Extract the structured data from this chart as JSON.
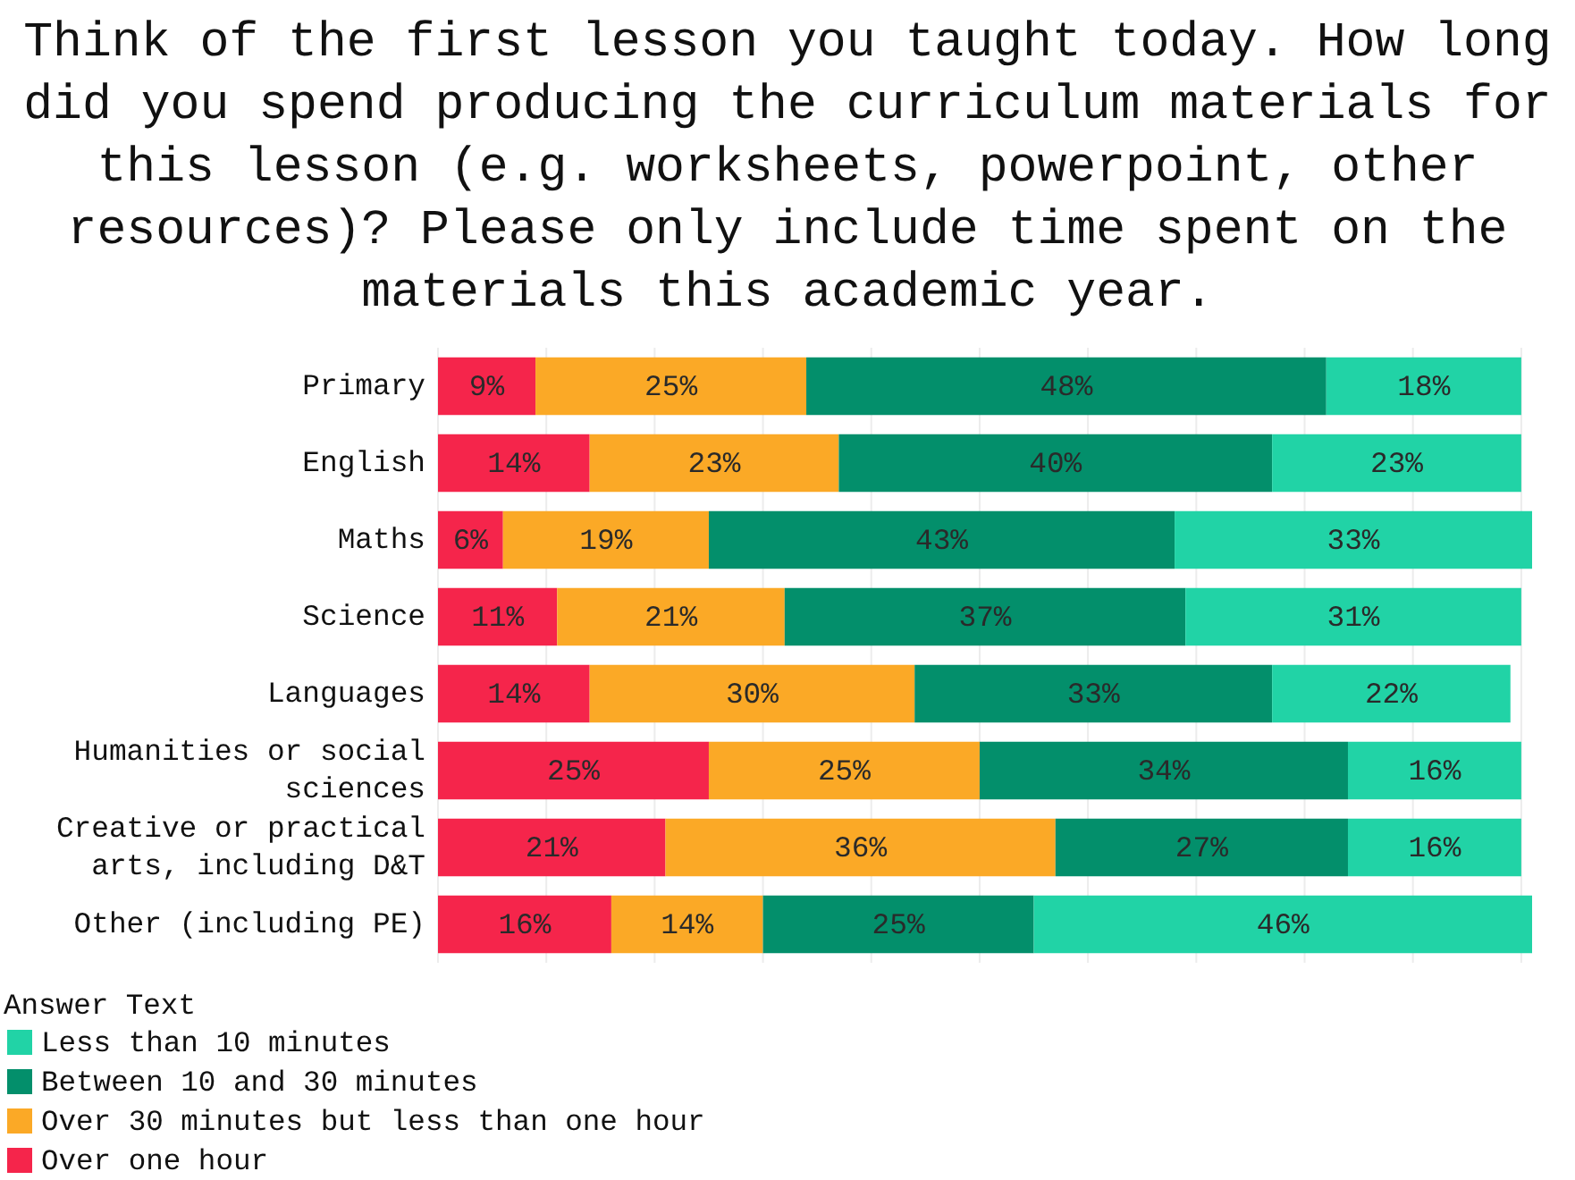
{
  "chart_data": {
    "type": "bar",
    "orientation": "horizontal",
    "stacked": true,
    "title": "Think of the first lesson you taught today. How long did you spend producing the curriculum materials for this lesson (e.g. worksheets, powerpoint, other resources)? Please only include time spent on the materials this academic year.",
    "categories": [
      "Primary",
      "English",
      "Maths",
      "Science",
      "Languages",
      "Humanities or social sciences",
      "Creative or practical arts, including D&T",
      "Other (including PE)"
    ],
    "series": [
      {
        "name": "Over one hour",
        "color": "#f5254b",
        "values": [
          9,
          14,
          6,
          11,
          14,
          25,
          21,
          16
        ],
        "value_labels": [
          "9%",
          "14%",
          "6%",
          "11%",
          "14%",
          "25%",
          "21%",
          "16%"
        ]
      },
      {
        "name": "Over 30 minutes but less than one hour",
        "color": "#fba926",
        "values": [
          25,
          23,
          19,
          21,
          30,
          25,
          36,
          14
        ],
        "value_labels": [
          "25%",
          "23%",
          "19%",
          "21%",
          "30%",
          "25%",
          "36%",
          "14%"
        ]
      },
      {
        "name": "Between 10 and 30 minutes",
        "color": "#038f6b",
        "values": [
          48,
          40,
          43,
          37,
          33,
          34,
          27,
          25
        ],
        "value_labels": [
          "48%",
          "40%",
          "43%",
          "37%",
          "33%",
          "34%",
          "27%",
          "25%"
        ]
      },
      {
        "name": "Less than 10 minutes",
        "color": "#21d3a6",
        "values": [
          18,
          23,
          33,
          31,
          22,
          16,
          16,
          46
        ],
        "value_labels": [
          "18%",
          "23%",
          "33%",
          "31%",
          "22%",
          "16%",
          "16%",
          "46%"
        ]
      }
    ],
    "xlim": [
      0,
      101
    ],
    "xticks": [
      {
        "value": 0,
        "label": null
      },
      {
        "value": 10,
        "label": null
      },
      {
        "value": 20,
        "label": null
      },
      {
        "value": 30,
        "label": null
      },
      {
        "value": 40,
        "label": null
      },
      {
        "value": 50,
        "label": null
      },
      {
        "value": 60,
        "label": null
      },
      {
        "value": 70,
        "label": null
      },
      {
        "value": 80,
        "label": null
      },
      {
        "value": 90,
        "label": null
      },
      {
        "value": 100,
        "label": null
      }
    ],
    "tick_labels": "y",
    "grid": "x",
    "legend": "bottom left",
    "legend_title": "Answer Text"
  }
}
